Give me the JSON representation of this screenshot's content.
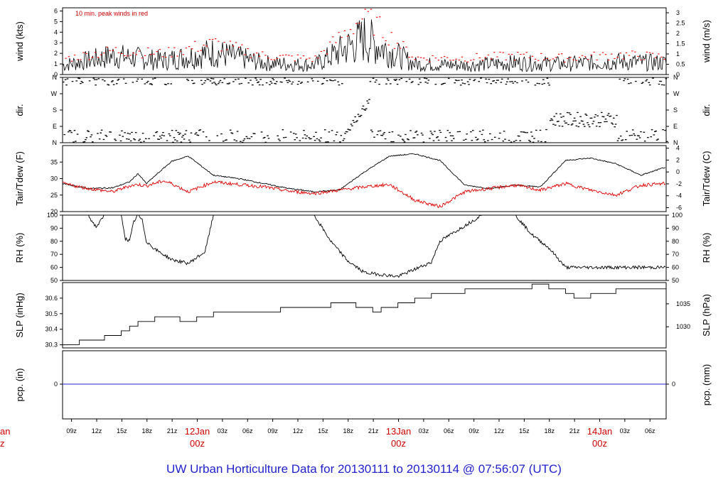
{
  "footer": "UW Urban Horticulture Data for 20130111  to  20130114 @ 07:56:07  (UTC)",
  "colors": {
    "series_black": "#000000",
    "series_red": "#dd0000",
    "peak_red": "#ff0000",
    "zero_line": "#2222cc",
    "day_label": "#cc0000"
  },
  "x_axis": {
    "hour_ticks": [
      "09z",
      "12z",
      "15z",
      "18z",
      "21z",
      "03z",
      "06z",
      "09z",
      "12z",
      "15z",
      "18z",
      "21z",
      "03z",
      "06z",
      "09z",
      "12z",
      "15z",
      "18z",
      "21z",
      "03z",
      "06z"
    ],
    "day_labels": [
      {
        "day": "12Jan",
        "hour": "00z"
      },
      {
        "day": "13Jan",
        "hour": "00z"
      },
      {
        "day": "14Jan",
        "hour": "00z"
      }
    ],
    "left_cut_label": {
      "day": "an",
      "hour": "z"
    }
  },
  "chart_data": [
    {
      "type": "line",
      "ylabel": "wind (kts)",
      "ylabel_right": "wind (m/s)",
      "annotation": "10 min. peak winds in red",
      "ylim": [
        0,
        6
      ],
      "yticks_left": [
        "0",
        "1",
        "2",
        "3",
        "4",
        "5",
        "6"
      ],
      "yticks_right": [
        "0",
        "0.5",
        "1",
        "1.5",
        "2",
        "2.5",
        "3"
      ],
      "x_hours": [
        0,
        6,
        12,
        18,
        24,
        30,
        36,
        42,
        48,
        54,
        60,
        66,
        72
      ],
      "series": [
        {
          "values": [
            0.8,
            1.6,
            1.2,
            1.9,
            1.0,
            0.8,
            3.1,
            0.9,
            0.8,
            1.0,
            0.9,
            1.1,
            1.0
          ],
          "color": "black"
        },
        {
          "values": [
            1.5,
            2.3,
            2.0,
            3.0,
            1.8,
            1.5,
            5.6,
            1.6,
            1.6,
            1.8,
            1.6,
            1.9,
            1.7
          ],
          "color": "red",
          "style": "dots"
        }
      ]
    },
    {
      "type": "scatter",
      "ylabel": "dir.",
      "ylabel_right": "dir.",
      "yticks_left": [
        "N",
        "E",
        "S",
        "W",
        "N"
      ],
      "yticks_right": [
        "N",
        "E",
        "S",
        "W",
        "N"
      ],
      "ylim": [
        0,
        360
      ]
    },
    {
      "type": "line",
      "ylabel": "Tair/Tdew (F)",
      "ylabel_right": "Tair/Tdew (C)",
      "ylim": [
        20,
        40
      ],
      "yticks_left": [
        "20",
        "25",
        "30",
        "35"
      ],
      "yticks_right": [
        "-6",
        "-4",
        "-2",
        "0",
        "2",
        "4"
      ],
      "x_hours": [
        0,
        3,
        6,
        8,
        9,
        10,
        12,
        13,
        15,
        18,
        21,
        24,
        27,
        30,
        33,
        36,
        39,
        42,
        45,
        48,
        51,
        54,
        57,
        60,
        63,
        66,
        69,
        72
      ],
      "series": [
        {
          "values": [
            28.5,
            27.0,
            27.2,
            29.0,
            31.5,
            28.5,
            33.0,
            35.2,
            36.8,
            31.0,
            30.0,
            28.5,
            27.0,
            26.0,
            26.5,
            32.0,
            36.8,
            37.5,
            35.5,
            28.0,
            27.0,
            28.0,
            27.5,
            35.5,
            36.2,
            34.5,
            31.0,
            33.5
          ],
          "color": "black"
        },
        {
          "values": [
            28.5,
            27.0,
            26.0,
            27.8,
            28.2,
            27.8,
            29.3,
            28.5,
            26.0,
            29.0,
            28.2,
            27.5,
            26.2,
            25.5,
            26.5,
            27.5,
            28.2,
            23.5,
            21.5,
            26.0,
            27.0,
            28.0,
            26.5,
            28.5,
            26.5,
            25.0,
            28.0,
            28.5
          ],
          "color": "red"
        }
      ]
    },
    {
      "type": "line",
      "ylabel": "RH (%)",
      "ylabel_right": "RH (%)",
      "ylim": [
        50,
        100
      ],
      "yticks_left": [
        "50",
        "60",
        "70",
        "80",
        "90",
        "100"
      ],
      "yticks_right": [
        "50",
        "60",
        "70",
        "80",
        "90",
        "100"
      ],
      "x_hours": [
        0,
        3,
        4,
        4.5,
        5,
        7,
        7.5,
        8,
        8.5,
        9,
        9.5,
        10,
        11,
        13,
        15,
        17,
        18,
        20,
        24,
        26,
        28,
        30,
        32,
        34,
        36,
        40,
        44,
        45,
        48,
        50,
        52,
        54,
        56,
        58,
        60
      ],
      "series": [
        {
          "values": [
            100,
            100,
            91,
            95,
            100,
            100,
            82,
            80,
            95,
            100,
            96,
            80,
            74,
            66,
            63,
            72,
            100,
            100,
            100,
            100,
            100,
            100,
            80,
            65,
            56,
            53,
            64,
            80,
            92,
            100,
            100,
            100,
            85,
            75,
            60
          ]
        }
      ]
    },
    {
      "type": "line",
      "ylabel": "SLP (inHg)",
      "ylabel_right": "SLP (hPa)",
      "ylim": [
        30.28,
        30.7
      ],
      "yticks_left": [
        "30.3",
        "30.4",
        "30.5",
        "30.6"
      ],
      "yticks_right": [
        "1030",
        "1035"
      ],
      "x_hours": [
        0,
        2,
        3,
        5,
        6,
        7,
        8,
        9,
        10,
        11,
        12,
        14,
        16,
        18,
        20,
        22,
        24,
        26,
        28,
        30,
        32,
        34,
        35,
        36,
        37,
        38,
        39,
        40,
        41,
        42,
        44,
        46,
        48,
        50,
        52,
        54,
        56,
        58,
        60,
        61,
        62,
        63,
        64,
        66,
        68,
        70,
        72
      ],
      "series": [
        {
          "values": [
            30.3,
            30.33,
            30.33,
            30.36,
            30.36,
            30.39,
            30.42,
            30.45,
            30.45,
            30.48,
            30.48,
            30.45,
            30.48,
            30.51,
            30.51,
            30.51,
            30.51,
            30.54,
            30.54,
            30.54,
            30.57,
            30.57,
            30.54,
            30.54,
            30.51,
            30.54,
            30.54,
            30.57,
            30.57,
            30.6,
            30.63,
            30.63,
            30.66,
            30.66,
            30.66,
            30.66,
            30.69,
            30.66,
            30.63,
            30.6,
            30.6,
            30.63,
            30.63,
            30.66,
            30.66,
            30.66,
            30.66
          ]
        }
      ]
    },
    {
      "type": "line",
      "ylabel": "pcp. (in)",
      "ylabel_right": "pcp. (mm)",
      "yticks_left": [
        "0"
      ],
      "yticks_right": [
        "0"
      ],
      "series": [
        {
          "values": [
            0,
            0
          ]
        }
      ]
    }
  ]
}
